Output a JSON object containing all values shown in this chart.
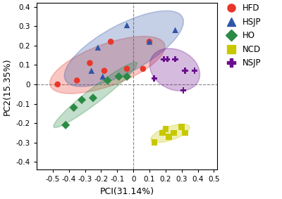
{
  "xlabel": "PCI(31.14%)",
  "ylabel": "PC2(15.35%)",
  "xlim": [
    -0.6,
    0.52
  ],
  "ylim": [
    -0.44,
    0.42
  ],
  "xticks": [
    -0.5,
    -0.4,
    -0.3,
    -0.2,
    -0.1,
    0.0,
    0.1,
    0.2,
    0.3,
    0.4,
    0.5
  ],
  "xtick_labels": [
    "-0.5",
    "-0.4",
    "-0.3",
    "-0.2",
    "-0.1",
    "0",
    "0.1",
    "0.2",
    "0.3",
    "0.4",
    "0.5"
  ],
  "yticks": [
    -0.4,
    -0.3,
    -0.2,
    -0.1,
    0.0,
    0.1,
    0.2,
    0.3,
    0.4
  ],
  "ytick_labels": [
    "-0.4",
    "-0.3",
    "-0.2",
    "-0.1",
    "0",
    "0.1",
    "0.2",
    "0.3",
    "0.4"
  ],
  "groups": {
    "HFD": {
      "color": "#e8372a",
      "marker": "o",
      "points": [
        [
          -0.47,
          0.0
        ],
        [
          -0.35,
          0.02
        ],
        [
          -0.27,
          0.11
        ],
        [
          -0.18,
          0.07
        ],
        [
          -0.14,
          0.22
        ],
        [
          -0.04,
          0.08
        ],
        [
          0.06,
          0.08
        ],
        [
          0.1,
          0.22
        ]
      ]
    },
    "HSJP": {
      "color": "#3155a6",
      "marker": "^",
      "points": [
        [
          -0.26,
          0.07
        ],
        [
          -0.22,
          0.19
        ],
        [
          -0.19,
          0.04
        ],
        [
          -0.04,
          0.305
        ],
        [
          0.1,
          0.22
        ],
        [
          0.26,
          0.28
        ]
      ]
    },
    "HO": {
      "color": "#2a8a46",
      "marker": "D",
      "points": [
        [
          -0.42,
          -0.21
        ],
        [
          -0.37,
          -0.12
        ],
        [
          -0.32,
          -0.08
        ],
        [
          -0.25,
          -0.07
        ],
        [
          -0.16,
          0.02
        ],
        [
          -0.09,
          0.04
        ],
        [
          -0.04,
          0.04
        ]
      ]
    },
    "NCD": {
      "color": "#c8c800",
      "marker": "s",
      "points": [
        [
          0.13,
          -0.3
        ],
        [
          0.18,
          -0.25
        ],
        [
          0.2,
          -0.23
        ],
        [
          0.22,
          -0.27
        ],
        [
          0.25,
          -0.25
        ],
        [
          0.3,
          -0.22
        ],
        [
          0.32,
          -0.25
        ]
      ]
    },
    "NSJP": {
      "color": "#6a0f8e",
      "marker": "P",
      "points": [
        [
          0.13,
          0.03
        ],
        [
          0.19,
          0.13
        ],
        [
          0.21,
          0.13
        ],
        [
          0.26,
          0.13
        ],
        [
          0.31,
          -0.03
        ],
        [
          0.32,
          0.07
        ],
        [
          0.38,
          0.07
        ]
      ]
    }
  },
  "ellipse_alpha": 0.28,
  "background_color": "#ffffff",
  "legend_fontsize": 8.5,
  "axis_fontsize": 9,
  "tick_fontsize": 7.5
}
